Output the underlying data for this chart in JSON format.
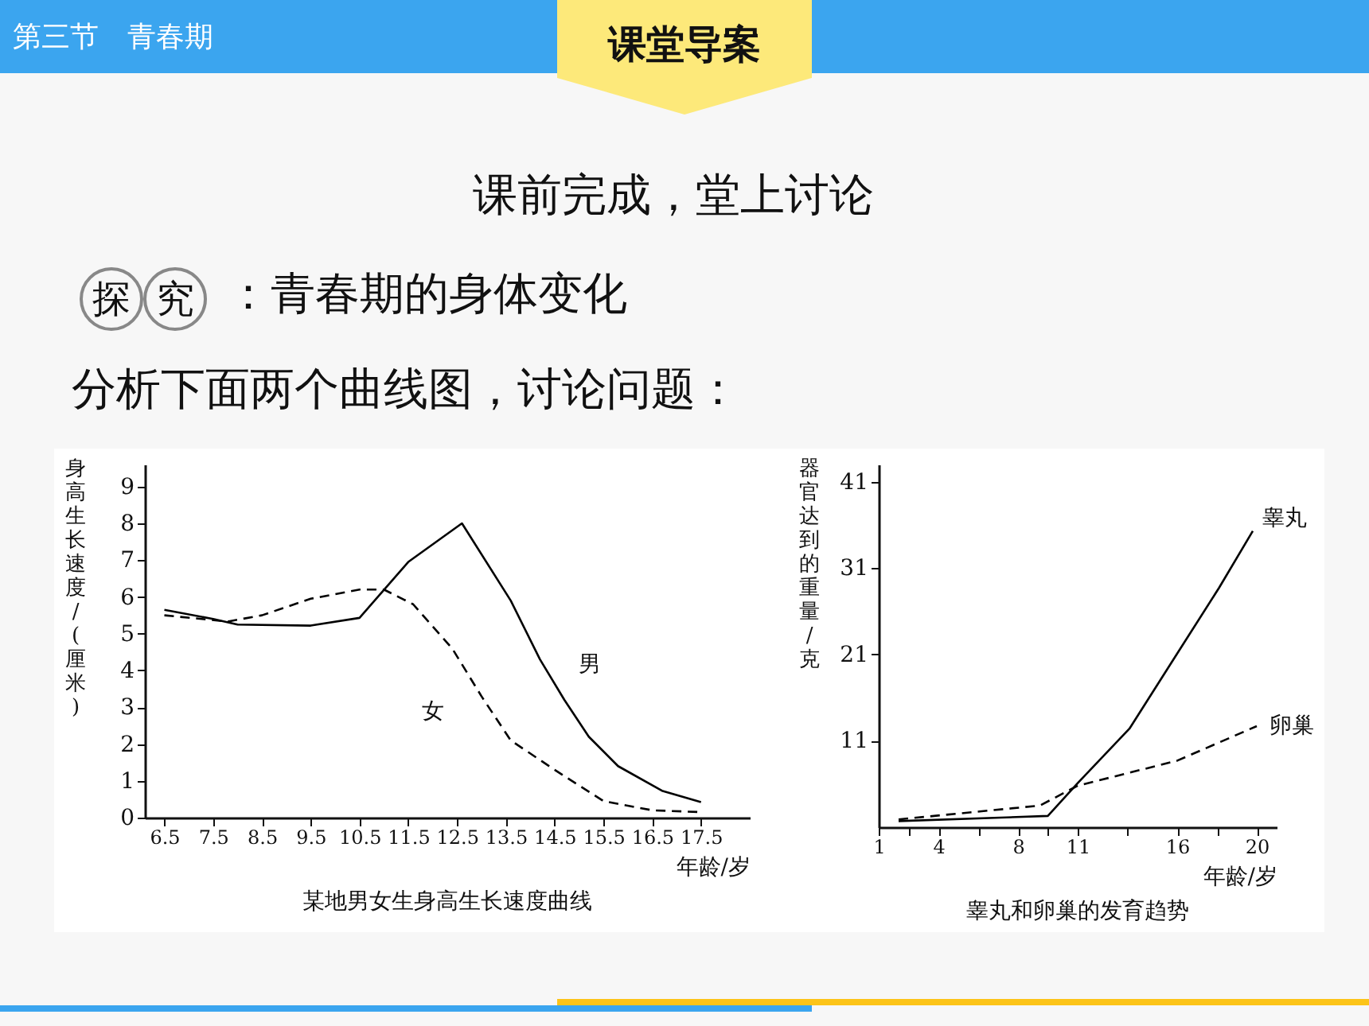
{
  "chart_data": [
    {
      "type": "line",
      "title": "某地男女生身高生长速度曲线",
      "xlabel": "年龄/岁",
      "ylabel": "身高生长速度/(厘米)",
      "annotations": [
        "第三节　青春期",
        "课堂导案",
        "课前完成，堂上讨论",
        "探究",
        "：青春期的身体变化",
        "分析下面两个曲线图，讨论问题："
      ],
      "xlim": [
        6.1,
        18.5
      ],
      "xticks": [
        6.5,
        7.5,
        8.5,
        9.5,
        10.5,
        11.5,
        12.5,
        13.5,
        14.5,
        15.5,
        16.5,
        17.5
      ],
      "ylim": [
        0,
        9.6
      ],
      "yticks": [
        0,
        1,
        2,
        3,
        4,
        5,
        6,
        7,
        8,
        9
      ],
      "grid": false,
      "legend": false,
      "series": [
        {
          "name": "男",
          "color": "#000000",
          "line_style": "solid",
          "x": [
            6.5,
            7.5,
            8,
            9.5,
            10.5,
            11.5,
            12.6,
            13.6,
            14.2,
            14.7,
            15.2,
            15.8,
            16.7,
            17.5
          ],
          "values": [
            5.65,
            5.4,
            5.25,
            5.22,
            5.43,
            6.95,
            8.0,
            5.9,
            4.3,
            3.2,
            2.2,
            1.4,
            0.73,
            0.42
          ]
        },
        {
          "name": "女",
          "color": "#000000",
          "line_style": "dashed",
          "x": [
            6.5,
            7.8,
            8.5,
            9.5,
            10.5,
            11,
            11.6,
            12.4,
            13,
            13.6,
            14.5,
            15.5,
            16.5,
            17.5
          ],
          "values": [
            5.5,
            5.33,
            5.5,
            5.95,
            6.2,
            6.2,
            5.8,
            4.6,
            3.3,
            2.1,
            1.3,
            0.45,
            0.2,
            0.15
          ]
        }
      ]
    },
    {
      "type": "line",
      "title": "睾丸和卵巢的发育趋势",
      "xlabel": "年龄/岁",
      "ylabel": "器官达到的重量/克",
      "xlim": [
        1,
        21
      ],
      "xticks": [
        1,
        {
          "value": 2.5,
          "label": null
        },
        4,
        {
          "value": 6,
          "label": null
        },
        8,
        {
          "value": 9.5,
          "label": null
        },
        11,
        {
          "value": 13.5,
          "label": null
        },
        16,
        {
          "value": 18,
          "label": null
        },
        20
      ],
      "ylim": [
        1,
        43
      ],
      "yticks": [
        11,
        21,
        31,
        41
      ],
      "grid": false,
      "legend": false,
      "series": [
        {
          "name": "睾丸",
          "color": "#000000",
          "line_style": "solid",
          "x": [
            2,
            9.5,
            11,
            13.6,
            16,
            18.1,
            19.8
          ],
          "values": [
            1.7,
            2.3,
            6.1,
            12.4,
            21.1,
            28.7,
            35.3
          ]
        },
        {
          "name": "卵巢",
          "color": "#000000",
          "line_style": "dashed",
          "x": [
            2,
            9.1,
            11,
            16,
            20
          ],
          "values": [
            1.9,
            3.5,
            5.8,
            8.7,
            12.7
          ]
        }
      ]
    }
  ]
}
